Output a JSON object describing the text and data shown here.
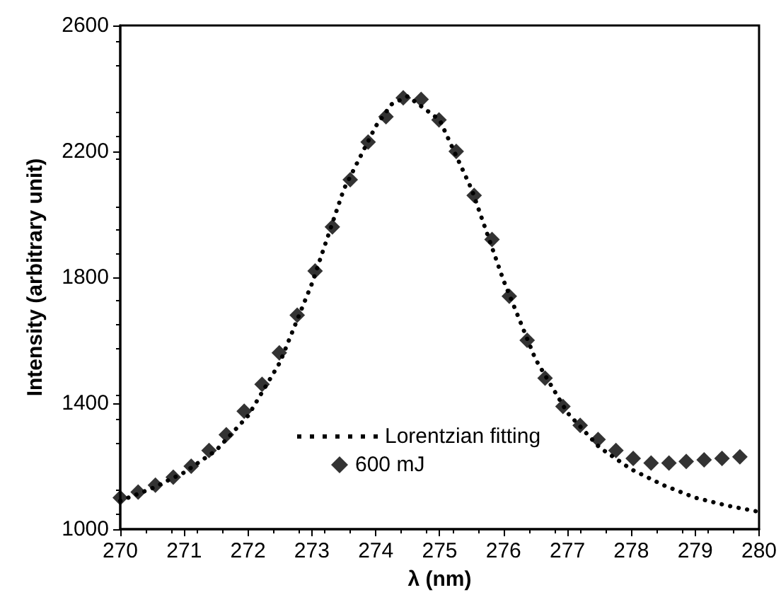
{
  "chart_data": {
    "type": "scatter",
    "xlabel": "λ (nm)",
    "ylabel": "Intensity (arbitrary unit)",
    "xlim": [
      270,
      280
    ],
    "xticks": [
      270,
      271,
      272,
      273,
      274,
      275,
      276,
      277,
      278,
      279,
      280
    ],
    "ylim": [
      1000,
      2600
    ],
    "yticks": [
      1000,
      1400,
      1800,
      2200,
      2600
    ],
    "grid": false,
    "legend": "bottom",
    "series": [
      {
        "name": "Lorentzian fitting",
        "type": "line",
        "line_style": "dotted",
        "marker": "none",
        "color": "#000000",
        "x": [
          270,
          270.5,
          271,
          271.5,
          272,
          272.5,
          273,
          273.5,
          274,
          274.25,
          274.5,
          275,
          275.5,
          276,
          276.5,
          277,
          277.5,
          278,
          278.5,
          279,
          279.5,
          280
        ],
        "values": [
          1090,
          1130,
          1180,
          1250,
          1360,
          1530,
          1780,
          2080,
          2280,
          2350,
          2375,
          2300,
          2080,
          1790,
          1540,
          1370,
          1260,
          1190,
          1140,
          1100,
          1075,
          1055
        ]
      },
      {
        "name": "600 mJ",
        "marker": "diamond",
        "color": "#000000",
        "x": [
          270.0,
          270.28,
          270.55,
          270.83,
          271.11,
          271.39,
          271.66,
          271.94,
          272.22,
          272.49,
          272.77,
          273.05,
          273.32,
          273.6,
          273.88,
          274.16,
          274.43,
          274.71,
          274.99,
          275.26,
          275.54,
          275.82,
          276.09,
          276.37,
          276.65,
          276.93,
          277.2,
          277.48,
          277.76,
          278.03,
          278.31,
          278.59,
          278.86,
          279.14,
          279.42,
          279.7
        ],
        "values": [
          1100,
          1118,
          1140,
          1165,
          1200,
          1250,
          1300,
          1375,
          1460,
          1560,
          1680,
          1820,
          1960,
          2110,
          2230,
          2310,
          2370,
          2365,
          2300,
          2200,
          2060,
          1920,
          1740,
          1600,
          1480,
          1390,
          1330,
          1285,
          1250,
          1225,
          1210,
          1210,
          1215,
          1220,
          1225,
          1230
        ]
      }
    ]
  }
}
